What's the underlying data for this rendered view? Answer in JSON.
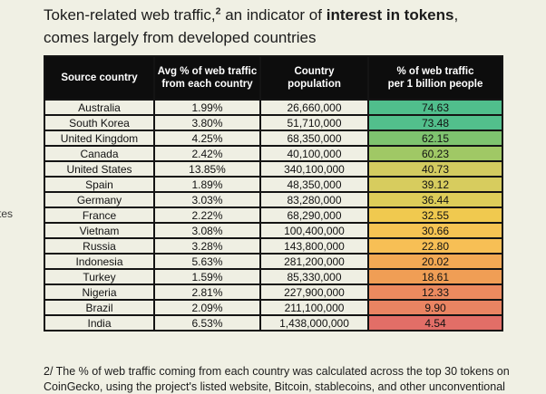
{
  "title": {
    "line1_pre": "Token-related web traffic,",
    "line1_sup": "2",
    "line1_mid": " an indicator of ",
    "line1_bold": "interest in tokens",
    "line1_post": ",",
    "line2": "comes largely from developed countries"
  },
  "side_fragment": "tes",
  "chart_data": {
    "type": "table",
    "title": "Token-related web traffic, an indicator of interest in tokens, comes largely from developed countries",
    "columns": [
      {
        "id": "source_country",
        "lines": [
          "Source country"
        ]
      },
      {
        "id": "avg_traffic",
        "lines": [
          "Avg % of web traffic",
          "from each country"
        ]
      },
      {
        "id": "population",
        "lines": [
          "Country",
          "population"
        ]
      },
      {
        "id": "per_billion",
        "lines": [
          "% of web traffic",
          "per 1 billion people"
        ]
      }
    ],
    "rows": [
      {
        "country": "Australia",
        "avg_traffic": "1.99%",
        "population": "26,660,000",
        "per_billion": "74.63",
        "cell_color": "#50be8c"
      },
      {
        "country": "South Korea",
        "avg_traffic": "3.80%",
        "population": "51,710,000",
        "per_billion": "73.48",
        "cell_color": "#52bf8c"
      },
      {
        "country": "United Kingdom",
        "avg_traffic": "4.25%",
        "population": "68,350,000",
        "per_billion": "62.15",
        "cell_color": "#7ec36f"
      },
      {
        "country": "Canada",
        "avg_traffic": "2.42%",
        "population": "40,100,000",
        "per_billion": "60.23",
        "cell_color": "#a0c865"
      },
      {
        "country": "United States",
        "avg_traffic": "13.85%",
        "population": "340,100,000",
        "per_billion": "40.73",
        "cell_color": "#d3cb60"
      },
      {
        "country": "Spain",
        "avg_traffic": "1.89%",
        "population": "48,350,000",
        "per_billion": "39.12",
        "cell_color": "#d7cc5e"
      },
      {
        "country": "Germany",
        "avg_traffic": "3.03%",
        "population": "83,280,000",
        "per_billion": "36.44",
        "cell_color": "#ddcd59"
      },
      {
        "country": "France",
        "avg_traffic": "2.22%",
        "population": "68,290,000",
        "per_billion": "32.55",
        "cell_color": "#f0c94f"
      },
      {
        "country": "Vietnam",
        "avg_traffic": "3.08%",
        "population": "100,400,000",
        "per_billion": "30.66",
        "cell_color": "#f6c453"
      },
      {
        "country": "Russia",
        "avg_traffic": "3.28%",
        "population": "143,800,000",
        "per_billion": "22.80",
        "cell_color": "#f7bf55"
      },
      {
        "country": "Indonesia",
        "avg_traffic": "5.63%",
        "population": "281,200,000",
        "per_billion": "20.02",
        "cell_color": "#f3a954"
      },
      {
        "country": "Turkey",
        "avg_traffic": "1.59%",
        "population": "85,330,000",
        "per_billion": "18.61",
        "cell_color": "#f09e55"
      },
      {
        "country": "Nigeria",
        "avg_traffic": "2.81%",
        "population": "227,900,000",
        "per_billion": "12.33",
        "cell_color": "#ec8a5f"
      },
      {
        "country": "Brazil",
        "avg_traffic": "2.09%",
        "population": "211,100,000",
        "per_billion": "9.90",
        "cell_color": "#ea8462"
      },
      {
        "country": "India",
        "avg_traffic": "6.53%",
        "population": "1,438,000,000",
        "per_billion": "4.54",
        "cell_color": "#e26e67"
      }
    ],
    "color_scale": {
      "high": "#50be8c",
      "mid": "#f0c94f",
      "low": "#e26e67"
    }
  },
  "footnote": {
    "lines": [
      "2/ The % of web traffic coming from each country was calculated across the top 30 tokens on",
      "CoinGecko, using the project's listed website, Bitcoin, stablecoins, and other unconventional"
    ]
  },
  "colors": {
    "background": "#f0f0e4",
    "header_bg": "#0d0d0d",
    "header_text": "#ffffff",
    "border": "#141414",
    "body_cell_bg": "#efefe3",
    "text": "#1b1b1b"
  }
}
